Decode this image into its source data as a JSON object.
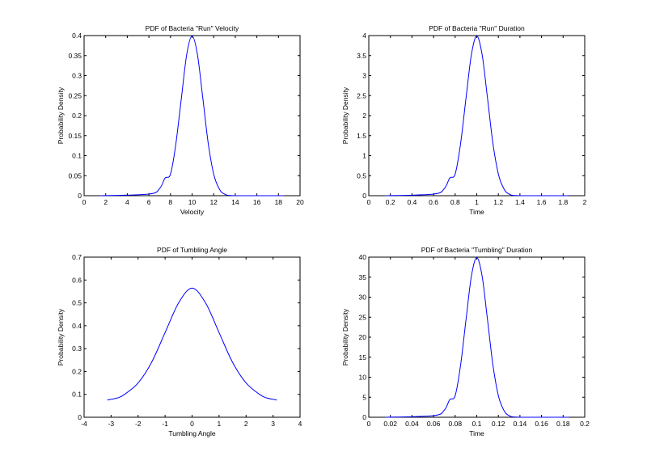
{
  "chart_data": [
    {
      "type": "line",
      "title": "PDF of Bacteria \"Run\" Velocity",
      "xlabel": "Velocity",
      "ylabel": "Probability Density",
      "xlim": [
        0,
        20
      ],
      "ylim": [
        0,
        0.4
      ],
      "xticks": [
        0,
        2,
        4,
        6,
        8,
        10,
        12,
        14,
        16,
        18,
        20
      ],
      "yticks": [
        0,
        0.05,
        0.1,
        0.15,
        0.2,
        0.25,
        0.3,
        0.35,
        0.4
      ],
      "xtick_labels": [
        "0",
        "2",
        "4",
        "6",
        "8",
        "10",
        "12",
        "14",
        "16",
        "18",
        "20"
      ],
      "ytick_labels": [
        "0",
        "0.05",
        "0.1",
        "0.15",
        "0.2",
        "0.25",
        "0.3",
        "0.35",
        "0.4"
      ],
      "grid": false,
      "color": "#0000ff",
      "series": [
        {
          "x": [
            1.5,
            6.0,
            7.0,
            7.5,
            8.0,
            8.5,
            9.0,
            9.5,
            10.0,
            10.5,
            11.0,
            11.5,
            12.0,
            12.5,
            13.0,
            14.0,
            18.5
          ],
          "y": [
            0,
            0.004,
            0.018,
            0.044,
            0.054,
            0.13,
            0.242,
            0.352,
            0.399,
            0.352,
            0.242,
            0.13,
            0.054,
            0.018,
            0.004,
            0.0001,
            0
          ]
        }
      ]
    },
    {
      "type": "line",
      "title": "PDF of Bacteria \"Run\" Duration",
      "xlabel": "Time",
      "ylabel": "Probability Density",
      "xlim": [
        0,
        2
      ],
      "ylim": [
        0,
        4
      ],
      "xticks": [
        0,
        0.2,
        0.4,
        0.6,
        0.8,
        1,
        1.2,
        1.4,
        1.6,
        1.8,
        2
      ],
      "yticks": [
        0,
        0.5,
        1,
        1.5,
        2,
        2.5,
        3,
        3.5,
        4
      ],
      "xtick_labels": [
        "0",
        "0.2",
        "0.4",
        "0.6",
        "0.8",
        "1",
        "1.2",
        "1.4",
        "1.6",
        "1.8",
        "2"
      ],
      "ytick_labels": [
        "0",
        "0.5",
        "1",
        "1.5",
        "2",
        "2.5",
        "3",
        "3.5",
        "4"
      ],
      "grid": false,
      "color": "#0000ff",
      "series": [
        {
          "x": [
            0.15,
            0.6,
            0.7,
            0.75,
            0.8,
            0.85,
            0.9,
            0.95,
            1.0,
            1.05,
            1.1,
            1.15,
            1.2,
            1.25,
            1.3,
            1.4,
            1.85
          ],
          "y": [
            0,
            0.04,
            0.18,
            0.44,
            0.54,
            1.3,
            2.42,
            3.52,
            3.99,
            3.52,
            2.42,
            1.3,
            0.54,
            0.18,
            0.04,
            0.001,
            0
          ]
        }
      ]
    },
    {
      "type": "line",
      "title": "PDF of Tumbling Angle",
      "xlabel": "Tumbling Angle",
      "ylabel": "Probability Density",
      "xlim": [
        -4,
        4
      ],
      "ylim": [
        0,
        0.7
      ],
      "xticks": [
        -4,
        -3,
        -2,
        -1,
        0,
        1,
        2,
        3,
        4
      ],
      "yticks": [
        0,
        0.1,
        0.2,
        0.3,
        0.4,
        0.5,
        0.6,
        0.7
      ],
      "xtick_labels": [
        "-4",
        "-3",
        "-2",
        "-1",
        "0",
        "1",
        "2",
        "3",
        "4"
      ],
      "ytick_labels": [
        "0",
        "0.1",
        "0.2",
        "0.3",
        "0.4",
        "0.5",
        "0.6",
        "0.7"
      ],
      "grid": false,
      "color": "#0000ff",
      "series": [
        {
          "x": [
            -3.14,
            -2.75,
            -2.5,
            -2.0,
            -1.5,
            -1.0,
            -0.5,
            0.0,
            0.5,
            1.0,
            1.5,
            2.0,
            2.5,
            2.75,
            3.14
          ],
          "y": [
            0.075,
            0.085,
            0.1,
            0.15,
            0.24,
            0.37,
            0.5,
            0.565,
            0.5,
            0.37,
            0.24,
            0.15,
            0.1,
            0.085,
            0.075
          ]
        }
      ]
    },
    {
      "type": "line",
      "title": "PDF of Bacteria \"Tumbling\" Duration",
      "xlabel": "Time",
      "ylabel": "Probability Density",
      "xlim": [
        0,
        0.2
      ],
      "ylim": [
        0,
        40
      ],
      "xticks": [
        0,
        0.02,
        0.04,
        0.06,
        0.08,
        0.1,
        0.12,
        0.14,
        0.16,
        0.18,
        0.2
      ],
      "yticks": [
        0,
        5,
        10,
        15,
        20,
        25,
        30,
        35,
        40
      ],
      "xtick_labels": [
        "0",
        "0.02",
        "0.04",
        "0.06",
        "0.08",
        "0.1",
        "0.12",
        "0.14",
        "0.16",
        "0.18",
        "0.2"
      ],
      "ytick_labels": [
        "0",
        "5",
        "10",
        "15",
        "20",
        "25",
        "30",
        "35",
        "40"
      ],
      "grid": false,
      "color": "#0000ff",
      "series": [
        {
          "x": [
            0.015,
            0.06,
            0.07,
            0.075,
            0.08,
            0.085,
            0.09,
            0.095,
            0.1,
            0.105,
            0.11,
            0.115,
            0.12,
            0.125,
            0.13,
            0.14,
            0.185
          ],
          "y": [
            0,
            0.4,
            1.8,
            4.4,
            5.4,
            13.0,
            24.2,
            35.2,
            39.9,
            35.2,
            24.2,
            13.0,
            5.4,
            1.8,
            0.4,
            0.01,
            0
          ]
        }
      ]
    }
  ]
}
